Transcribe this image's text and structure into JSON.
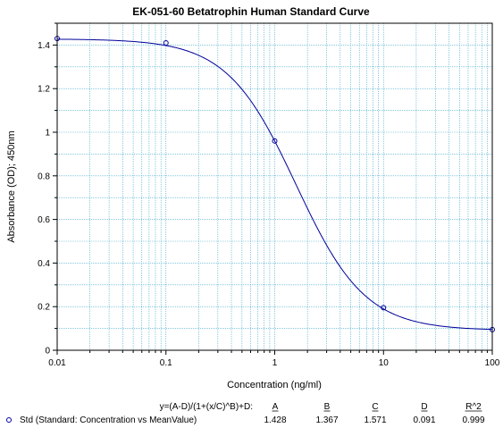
{
  "chart_data": {
    "type": "scatter",
    "title": "EK-051-60 Betatrophin Human Standard Curve",
    "xlabel": "Concentration (ng/ml)",
    "ylabel": "Absorbance (OD); 450nm",
    "x_scale": "log",
    "xlim": [
      0.01,
      100
    ],
    "ylim": [
      0,
      1.5
    ],
    "x_tick_labels": [
      "0.01",
      "0.1",
      "1",
      "10",
      "100"
    ],
    "y_tick_labels": [
      "0",
      "0.2",
      "0.4",
      "0.6",
      "0.8",
      "1",
      "1.2",
      "1.4"
    ],
    "grid": true,
    "colors": {
      "curve": "#00009a",
      "marker": "#00009a",
      "grid": "#3aa6c8"
    },
    "series": [
      {
        "name": "Std (Standard: Concentration vs MeanValue)",
        "marker": "circle",
        "points": [
          {
            "x": 0.01,
            "y": 1.43
          },
          {
            "x": 0.1,
            "y": 1.41
          },
          {
            "x": 1,
            "y": 0.96
          },
          {
            "x": 10,
            "y": 0.195
          },
          {
            "x": 100,
            "y": 0.095
          }
        ]
      }
    ],
    "fit": {
      "equation": "y=(A-D)/(1+(x/C)^B)+D:",
      "headers": [
        "A",
        "B",
        "C",
        "D",
        "R^2"
      ],
      "values": [
        "1.428",
        "1.367",
        "1.571",
        "0.091",
        "0.999"
      ],
      "params": {
        "A": 1.428,
        "B": 1.367,
        "C": 1.571,
        "D": 0.091
      }
    }
  }
}
